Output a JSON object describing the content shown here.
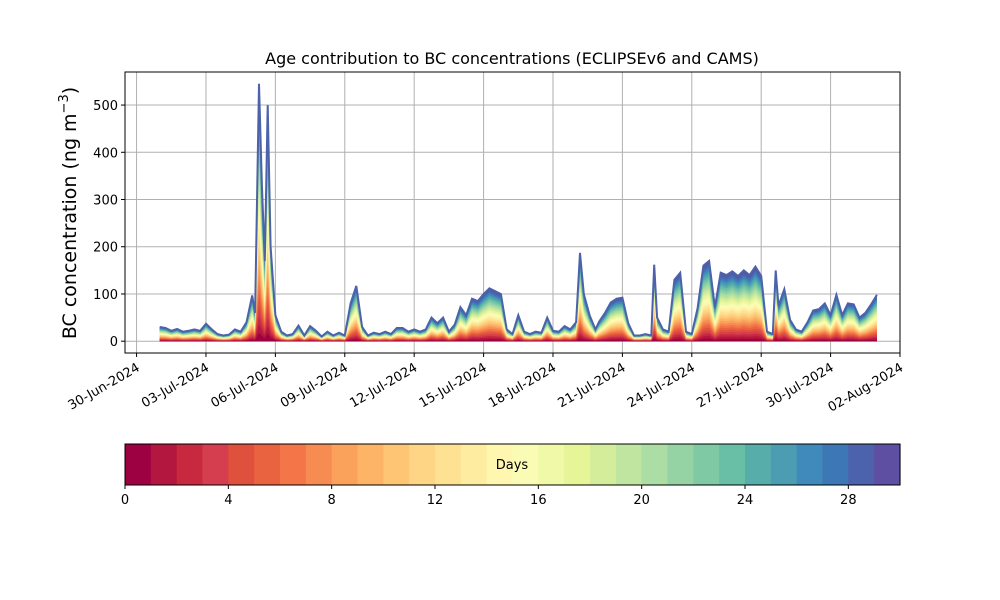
{
  "chart_data": {
    "type": "area",
    "title": "Age contribution to BC concentrations (ECLIPSEv6 and CAMS)",
    "ylabel": "BC concentration (ng m",
    "ylabel_unit_superscript": "−3",
    "ylabel_close": ")",
    "xlabel": "",
    "ylim": [
      -25,
      570
    ],
    "yticks": [
      0,
      100,
      200,
      300,
      400,
      500
    ],
    "ytick_labels": [
      "0",
      "100",
      "200",
      "300",
      "400",
      "500"
    ],
    "x_start": "2024-06-29T12:00",
    "x_end": "2024-08-02T00:00",
    "xticks": [
      "2024-06-30",
      "2024-07-03",
      "2024-07-06",
      "2024-07-09",
      "2024-07-12",
      "2024-07-15",
      "2024-07-18",
      "2024-07-21",
      "2024-07-24",
      "2024-07-27",
      "2024-07-30",
      "2024-08-02"
    ],
    "xtick_labels": [
      "30-Jun-2024",
      "03-Jul-2024",
      "06-Jul-2024",
      "09-Jul-2024",
      "12-Jul-2024",
      "15-Jul-2024",
      "18-Jul-2024",
      "21-Jul-2024",
      "24-Jul-2024",
      "27-Jul-2024",
      "30-Jul-2024",
      "02-Aug-2024"
    ],
    "grid": true,
    "total_series": {
      "name": "total",
      "points": [
        [
          "2024-07-01T00:00",
          30
        ],
        [
          "2024-07-01T06:00",
          28
        ],
        [
          "2024-07-01T12:00",
          22
        ],
        [
          "2024-07-01T18:00",
          26
        ],
        [
          "2024-07-02T00:00",
          20
        ],
        [
          "2024-07-02T06:00",
          22
        ],
        [
          "2024-07-02T12:00",
          25
        ],
        [
          "2024-07-02T18:00",
          22
        ],
        [
          "2024-07-03T00:00",
          37
        ],
        [
          "2024-07-03T06:00",
          25
        ],
        [
          "2024-07-03T12:00",
          15
        ],
        [
          "2024-07-03T18:00",
          12
        ],
        [
          "2024-07-04T00:00",
          14
        ],
        [
          "2024-07-04T06:00",
          25
        ],
        [
          "2024-07-04T12:00",
          20
        ],
        [
          "2024-07-04T18:00",
          40
        ],
        [
          "2024-07-05T00:00",
          97
        ],
        [
          "2024-07-05T03:00",
          60
        ],
        [
          "2024-07-05T07:00",
          545
        ],
        [
          "2024-07-05T10:00",
          330
        ],
        [
          "2024-07-05T13:00",
          170
        ],
        [
          "2024-07-05T16:00",
          500
        ],
        [
          "2024-07-05T19:00",
          200
        ],
        [
          "2024-07-06T00:00",
          55
        ],
        [
          "2024-07-06T06:00",
          20
        ],
        [
          "2024-07-06T12:00",
          12
        ],
        [
          "2024-07-06T18:00",
          15
        ],
        [
          "2024-07-07T00:00",
          33
        ],
        [
          "2024-07-07T06:00",
          12
        ],
        [
          "2024-07-07T12:00",
          32
        ],
        [
          "2024-07-07T18:00",
          22
        ],
        [
          "2024-07-08T00:00",
          10
        ],
        [
          "2024-07-08T06:00",
          20
        ],
        [
          "2024-07-08T12:00",
          12
        ],
        [
          "2024-07-08T18:00",
          18
        ],
        [
          "2024-07-09T00:00",
          12
        ],
        [
          "2024-07-09T06:00",
          80
        ],
        [
          "2024-07-09T12:00",
          117
        ],
        [
          "2024-07-09T18:00",
          30
        ],
        [
          "2024-07-10T00:00",
          12
        ],
        [
          "2024-07-10T06:00",
          18
        ],
        [
          "2024-07-10T12:00",
          15
        ],
        [
          "2024-07-10T18:00",
          20
        ],
        [
          "2024-07-11T00:00",
          15
        ],
        [
          "2024-07-11T06:00",
          28
        ],
        [
          "2024-07-11T12:00",
          28
        ],
        [
          "2024-07-11T18:00",
          20
        ],
        [
          "2024-07-12T00:00",
          25
        ],
        [
          "2024-07-12T06:00",
          20
        ],
        [
          "2024-07-12T12:00",
          25
        ],
        [
          "2024-07-12T18:00",
          50
        ],
        [
          "2024-07-13T00:00",
          38
        ],
        [
          "2024-07-13T06:00",
          50
        ],
        [
          "2024-07-13T12:00",
          20
        ],
        [
          "2024-07-13T18:00",
          35
        ],
        [
          "2024-07-14T00:00",
          72
        ],
        [
          "2024-07-14T06:00",
          55
        ],
        [
          "2024-07-14T12:00",
          90
        ],
        [
          "2024-07-14T18:00",
          85
        ],
        [
          "2024-07-15T00:00",
          100
        ],
        [
          "2024-07-15T06:00",
          112
        ],
        [
          "2024-07-15T12:00",
          106
        ],
        [
          "2024-07-15T18:00",
          100
        ],
        [
          "2024-07-16T00:00",
          25
        ],
        [
          "2024-07-16T06:00",
          15
        ],
        [
          "2024-07-16T12:00",
          55
        ],
        [
          "2024-07-16T18:00",
          20
        ],
        [
          "2024-07-17T00:00",
          15
        ],
        [
          "2024-07-17T06:00",
          20
        ],
        [
          "2024-07-17T12:00",
          18
        ],
        [
          "2024-07-17T18:00",
          50
        ],
        [
          "2024-07-18T00:00",
          22
        ],
        [
          "2024-07-18T06:00",
          20
        ],
        [
          "2024-07-18T12:00",
          32
        ],
        [
          "2024-07-18T18:00",
          25
        ],
        [
          "2024-07-19T00:00",
          40
        ],
        [
          "2024-07-19T04:00",
          187
        ],
        [
          "2024-07-19T08:00",
          100
        ],
        [
          "2024-07-19T14:00",
          55
        ],
        [
          "2024-07-19T20:00",
          25
        ],
        [
          "2024-07-20T00:00",
          42
        ],
        [
          "2024-07-20T06:00",
          60
        ],
        [
          "2024-07-20T12:00",
          82
        ],
        [
          "2024-07-20T18:00",
          90
        ],
        [
          "2024-07-21T00:00",
          92
        ],
        [
          "2024-07-21T06:00",
          38
        ],
        [
          "2024-07-21T12:00",
          12
        ],
        [
          "2024-07-21T18:00",
          12
        ],
        [
          "2024-07-22T00:00",
          15
        ],
        [
          "2024-07-22T06:00",
          12
        ],
        [
          "2024-07-22T09:00",
          162
        ],
        [
          "2024-07-22T12:00",
          50
        ],
        [
          "2024-07-22T18:00",
          25
        ],
        [
          "2024-07-23T00:00",
          20
        ],
        [
          "2024-07-23T06:00",
          130
        ],
        [
          "2024-07-23T12:00",
          145
        ],
        [
          "2024-07-23T18:00",
          20
        ],
        [
          "2024-07-24T00:00",
          15
        ],
        [
          "2024-07-24T06:00",
          70
        ],
        [
          "2024-07-24T12:00",
          160
        ],
        [
          "2024-07-24T18:00",
          170
        ],
        [
          "2024-07-25T00:00",
          72
        ],
        [
          "2024-07-25T06:00",
          145
        ],
        [
          "2024-07-25T12:00",
          140
        ],
        [
          "2024-07-25T18:00",
          148
        ],
        [
          "2024-07-26T00:00",
          138
        ],
        [
          "2024-07-26T06:00",
          150
        ],
        [
          "2024-07-26T12:00",
          140
        ],
        [
          "2024-07-26T18:00",
          158
        ],
        [
          "2024-07-27T00:00",
          138
        ],
        [
          "2024-07-27T06:00",
          20
        ],
        [
          "2024-07-27T12:00",
          15
        ],
        [
          "2024-07-27T15:00",
          150
        ],
        [
          "2024-07-27T18:00",
          75
        ],
        [
          "2024-07-28T00:00",
          110
        ],
        [
          "2024-07-28T06:00",
          45
        ],
        [
          "2024-07-28T12:00",
          25
        ],
        [
          "2024-07-28T18:00",
          20
        ],
        [
          "2024-07-29T00:00",
          40
        ],
        [
          "2024-07-29T06:00",
          65
        ],
        [
          "2024-07-29T12:00",
          68
        ],
        [
          "2024-07-29T18:00",
          80
        ],
        [
          "2024-07-30T00:00",
          55
        ],
        [
          "2024-07-30T06:00",
          98
        ],
        [
          "2024-07-30T12:00",
          55
        ],
        [
          "2024-07-30T18:00",
          80
        ],
        [
          "2024-07-31T00:00",
          78
        ],
        [
          "2024-07-31T06:00",
          50
        ],
        [
          "2024-07-31T12:00",
          60
        ],
        [
          "2024-07-31T18:00",
          78
        ],
        [
          "2024-08-01T00:00",
          98
        ]
      ]
    },
    "colorbar": {
      "label": "Days",
      "min": 0,
      "max": 30,
      "ticks": [
        0,
        4,
        8,
        12,
        16,
        20,
        24,
        28
      ],
      "tick_labels": [
        "0",
        "4",
        "8",
        "12",
        "16",
        "20",
        "24",
        "28"
      ],
      "colors": [
        "#9e0142",
        "#b3173f",
        "#c8293e",
        "#d53e4f",
        "#e0513d",
        "#ea6340",
        "#f47547",
        "#f78c53",
        "#faa15c",
        "#fdb466",
        "#fdc574",
        "#fdd584",
        "#fee192",
        "#feeda0",
        "#fff7af",
        "#fafcb5",
        "#f0f9a8",
        "#e6f598",
        "#d4ed9b",
        "#bfe5a0",
        "#abdda4",
        "#95d3a5",
        "#7fc9a5",
        "#69bfa6",
        "#56adaa",
        "#4c9cb2",
        "#3f8abb",
        "#3e77b6",
        "#4c62aa",
        "#5e4fa2"
      ]
    }
  }
}
